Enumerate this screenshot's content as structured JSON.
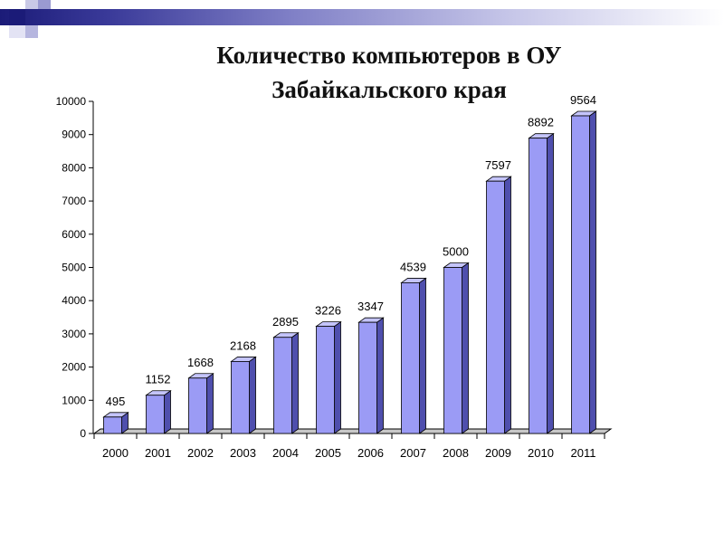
{
  "title": {
    "line1": "Количество компьютеров в ОУ",
    "line2": "Забайкальского края"
  },
  "chart_data": {
    "type": "bar",
    "title": "Количество компьютеров в ОУ Забайкальского края",
    "categories": [
      "2000",
      "2001",
      "2002",
      "2003",
      "2004",
      "2005",
      "2006",
      "2007",
      "2008",
      "2009",
      "2010",
      "2011"
    ],
    "values": [
      495,
      1152,
      1668,
      2168,
      2895,
      3226,
      3347,
      4539,
      5000,
      7597,
      8892,
      9564
    ],
    "data_labels": [
      "495",
      "1152",
      "1668",
      "2168",
      "2895",
      "3226",
      "3347",
      "4539",
      "5000",
      "7597",
      "8892",
      "9564"
    ],
    "ylim": [
      0,
      10000
    ],
    "yticks": [
      0,
      1000,
      2000,
      3000,
      4000,
      5000,
      6000,
      7000,
      8000,
      9000,
      10000
    ],
    "ytick_labels": [
      "0",
      "1000",
      "2000",
      "3000",
      "4000",
      "5000",
      "6000",
      "7000",
      "8000",
      "9000",
      "10000"
    ],
    "grid": false,
    "bar_style": "3d",
    "colors": {
      "bar_front": "#9b9bf5",
      "bar_side": "#4f4fad",
      "bar_top": "#c4c4fb",
      "floor": "#c8c8c8"
    }
  }
}
